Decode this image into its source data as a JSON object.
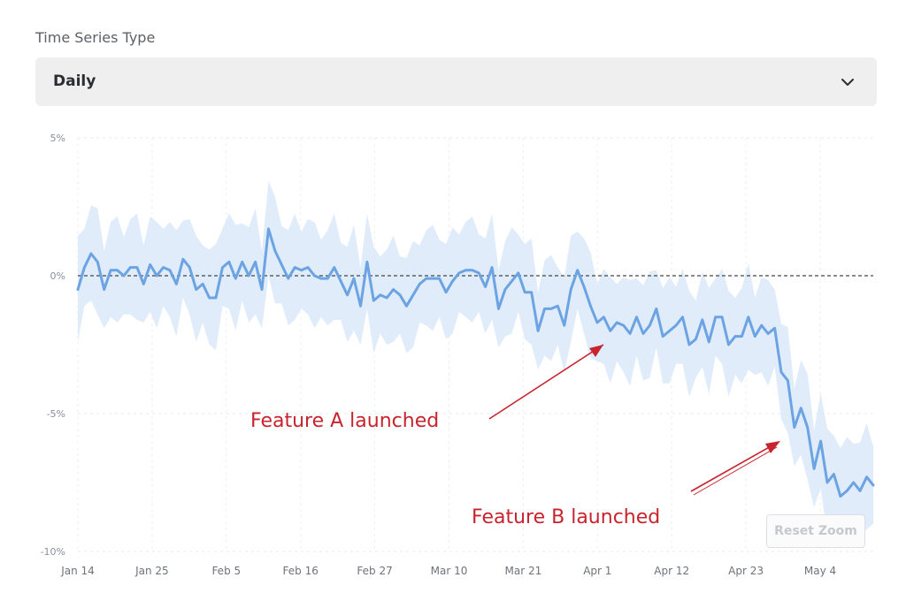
{
  "control": {
    "label": "Time Series Type",
    "selected": "Daily",
    "chevron_icon": "chevron-down-icon"
  },
  "reset_zoom_label": "Reset Zoom",
  "colors": {
    "line": "#6ba3e3",
    "band": "#dbe9f9",
    "reference": "#444444",
    "annotation": "#c8242d"
  },
  "chart_data": {
    "type": "line",
    "title": "",
    "xlabel": "",
    "ylabel": "",
    "ylim": [
      -10,
      5
    ],
    "y_ticks": [
      "5%",
      "0%",
      "-5%",
      "-10%"
    ],
    "y_tick_values": [
      5,
      0,
      -5,
      -10
    ],
    "x_ticks": [
      "Jan 14",
      "Jan 25",
      "Feb 5",
      "Feb 16",
      "Feb 27",
      "Mar 10",
      "Mar 21",
      "Apr 1",
      "Apr 12",
      "Apr 23",
      "May 4"
    ],
    "x_tick_days": [
      0,
      11,
      22,
      33,
      44,
      55,
      66,
      77,
      88,
      99,
      110
    ],
    "grid": true,
    "reference_line": 0,
    "band_width": 1.6,
    "series": [
      {
        "values": [
          -0.5,
          0.3,
          0.8,
          0.5,
          -0.5,
          0.2,
          0.2,
          0.0,
          0.3,
          0.3,
          -0.3,
          0.4,
          0.0,
          0.3,
          0.2,
          -0.3,
          0.6,
          0.3,
          -0.5,
          -0.3,
          -0.8,
          -0.8,
          0.3,
          0.5,
          -0.1,
          0.5,
          0.0,
          0.5,
          -0.5,
          1.7,
          0.9,
          0.4,
          -0.1,
          0.3,
          0.2,
          0.3,
          0.0,
          -0.1,
          -0.1,
          0.3,
          -0.2,
          -0.7,
          -0.1,
          -1.1,
          0.5,
          -0.9,
          -0.7,
          -0.8,
          -0.5,
          -0.7,
          -1.1,
          -0.7,
          -0.3,
          -0.1,
          -0.1,
          -0.1,
          -0.6,
          -0.2,
          0.1,
          0.2,
          0.2,
          0.1,
          -0.4,
          0.3,
          -1.2,
          -0.5,
          -0.2,
          0.1,
          -0.6,
          -0.6,
          -2.0,
          -1.2,
          -1.2,
          -1.1,
          -1.8,
          -0.5,
          0.2,
          -0.4,
          -1.1,
          -1.7,
          -1.5,
          -2.0,
          -1.7,
          -1.8,
          -2.1,
          -1.5,
          -2.1,
          -1.8,
          -1.2,
          -2.2,
          -2.0,
          -1.8,
          -1.5,
          -2.5,
          -2.3,
          -1.6,
          -2.4,
          -1.5,
          -1.5,
          -2.5,
          -2.2,
          -2.2,
          -1.5,
          -2.2,
          -1.8,
          -2.1,
          -1.9,
          -3.5,
          -3.8,
          -5.5,
          -4.8,
          -5.5,
          -7.0,
          -6.0,
          -7.5,
          -7.2,
          -8.0,
          -7.8,
          -7.5,
          -7.8,
          -7.3,
          -7.6
        ]
      }
    ],
    "annotations": [
      {
        "text": "Feature A launched",
        "points_to": "Apr 1"
      },
      {
        "text": "Feature B launched",
        "points_to": "Apr 28"
      }
    ]
  }
}
